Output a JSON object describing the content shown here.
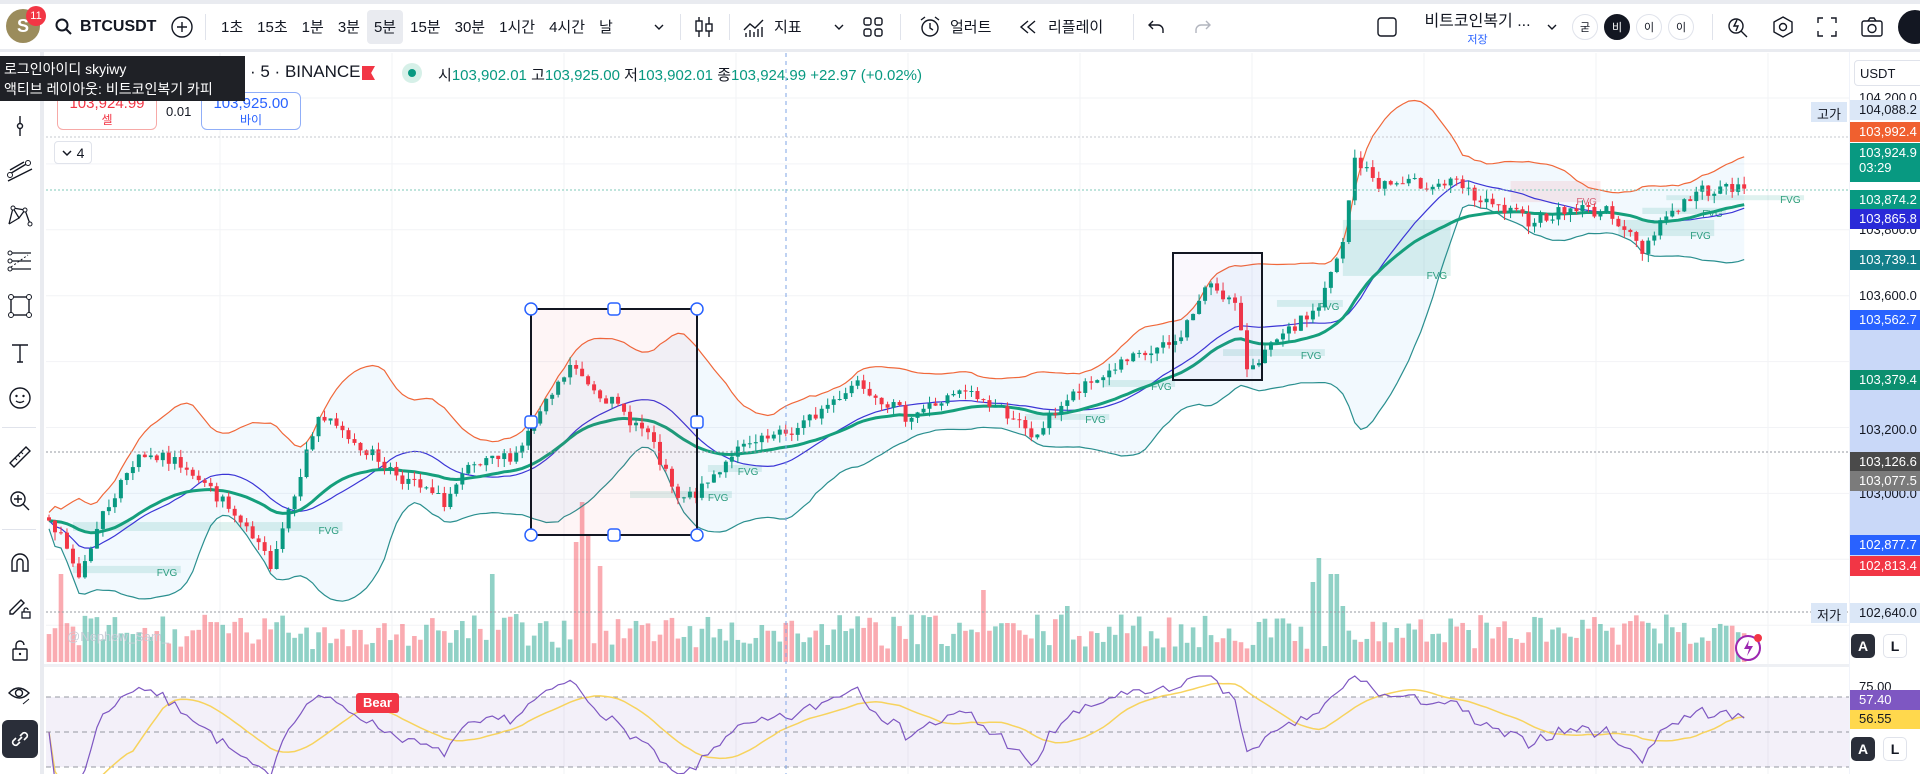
{
  "toolbar": {
    "avatar_letter": "S",
    "notification_count": "11",
    "symbol": "BTCUSDT",
    "timeframes": [
      "1초",
      "15초",
      "1분",
      "3분",
      "5분",
      "15분",
      "30분",
      "1시간",
      "4시간",
      "날"
    ],
    "active_timeframe_index": 4,
    "indicators_label": "지표",
    "alert_label": "얼러트",
    "replay_label": "리플레이",
    "layout_name": "비트코인복기 ...",
    "layout_save": "저장",
    "mode_buttons": [
      "굳",
      "비",
      "이",
      "이"
    ]
  },
  "tooltip": {
    "line1": "로그인아이디 skyiwy",
    "line2": "액티브 레이아웃: 비트코인복기 카피"
  },
  "legend": {
    "symbol_suffix": "· 5 · BINANCE",
    "o_label": "시",
    "o": "103,902.01",
    "h_label": "고",
    "h": "103,925.00",
    "l_label": "저",
    "l": "103,902.01",
    "c_label": "종",
    "c": "103,924.99",
    "change": "+22.97 (+0.02%)"
  },
  "trade": {
    "sell_price": "103,924.99",
    "sell_label": "셀",
    "spread": "0.01",
    "buy_price": "103,925.00",
    "buy_label": "바이"
  },
  "indicator_toggle": {
    "count": "4"
  },
  "watermark": "@Nephew_Sam_",
  "price_axis": {
    "currency": "USDT",
    "ticks": [
      "104,200.0",
      "103,800.0",
      "103,600.0",
      "103,200.0",
      "103,000.0"
    ],
    "high_tag": "고가",
    "low_tag": "저가",
    "labels": [
      {
        "text": "104,088.2",
        "color": "#dbe7f7",
        "fg": "#131722"
      },
      {
        "text": "103,992.4",
        "color": "#f0602f",
        "fg": "#ffffff"
      },
      {
        "text": "103,924.9",
        "sub": "03:29",
        "color": "#089981",
        "fg": "#ffffff"
      },
      {
        "text": "103,874.2",
        "color": "#089981",
        "fg": "#ffffff"
      },
      {
        "text": "103,865.8",
        "color": "#2a2ad8",
        "fg": "#ffffff"
      },
      {
        "text": "103,739.1",
        "color": "#137f8a",
        "fg": "#ffffff"
      },
      {
        "text": "103,562.7",
        "color": "#2962ff",
        "fg": "#ffffff"
      },
      {
        "text": "103,379.4",
        "color": "#0b8f6f",
        "fg": "#ffffff"
      },
      {
        "text": "103,126.6",
        "color": "#4a4a4a",
        "fg": "#ffffff"
      },
      {
        "text": "103,077.5",
        "color": "#7b7b7b",
        "fg": "#ffffff"
      },
      {
        "text": "102,877.7",
        "color": "#2962ff",
        "fg": "#ffffff"
      },
      {
        "text": "102,813.4",
        "color": "#f23645",
        "fg": "#ffffff"
      },
      {
        "text": "102,640.0",
        "color": "#dbe7f7",
        "fg": "#131722"
      }
    ]
  },
  "rsi": {
    "level_label": "75.00",
    "value": "57.40",
    "ma_value": "56.55",
    "bear_label": "Bear"
  },
  "scale_buttons": {
    "auto": "A",
    "log": "L"
  },
  "colors": {
    "up": "#089981",
    "down": "#f23645",
    "bb_upper": "#f0683a",
    "bb_lower": "#2a8f8f",
    "bb_basis": "#3b35d6",
    "ema": "#159f7c",
    "rsi": "#7e57c2",
    "rsi_ma": "#f7d35e",
    "fvg": "#cdeee2"
  },
  "chart_data": {
    "type": "candlestick",
    "bar_count": 284,
    "price_range": [
      102600,
      104250
    ],
    "close_path": [
      [
        0,
        102937
      ],
      [
        5,
        102749
      ],
      [
        9,
        102937
      ],
      [
        15,
        103123
      ],
      [
        23,
        103086
      ],
      [
        29,
        102974
      ],
      [
        37,
        102789
      ],
      [
        41,
        103010
      ],
      [
        45,
        103235
      ],
      [
        51,
        103159
      ],
      [
        59,
        103047
      ],
      [
        66,
        102974
      ],
      [
        70,
        103068
      ],
      [
        78,
        103123
      ],
      [
        87,
        103384
      ],
      [
        92,
        103308
      ],
      [
        100,
        103177
      ],
      [
        105,
        102974
      ],
      [
        109,
        103010
      ],
      [
        114,
        103123
      ],
      [
        125,
        103195
      ],
      [
        135,
        103344
      ],
      [
        143,
        103235
      ],
      [
        153,
        103308
      ],
      [
        161,
        103235
      ],
      [
        164,
        103159
      ],
      [
        169,
        103271
      ],
      [
        178,
        103384
      ],
      [
        188,
        103456
      ],
      [
        194,
        103642
      ],
      [
        198,
        103569
      ],
      [
        200,
        103384
      ],
      [
        205,
        103456
      ],
      [
        212,
        103569
      ],
      [
        216,
        103754
      ],
      [
        218,
        104015
      ],
      [
        222,
        103939
      ],
      [
        228,
        103939
      ],
      [
        235,
        103939
      ],
      [
        239,
        103884
      ],
      [
        247,
        103830
      ],
      [
        255,
        103866
      ],
      [
        261,
        103850
      ],
      [
        266,
        103736
      ],
      [
        269,
        103830
      ],
      [
        276,
        103921
      ],
      [
        283,
        103925
      ]
    ],
    "volume_spikes": [
      [
        2,
        0.55
      ],
      [
        74,
        0.55
      ],
      [
        88,
        0.75
      ],
      [
        89,
        1.0
      ],
      [
        90,
        0.8
      ],
      [
        92,
        0.6
      ],
      [
        156,
        0.45
      ],
      [
        170,
        0.35
      ],
      [
        211,
        0.5
      ],
      [
        212,
        0.65
      ],
      [
        214,
        0.55
      ],
      [
        215,
        0.55
      ],
      [
        216,
        0.35
      ]
    ],
    "fvg_zones": [
      {
        "label": "FVG",
        "from": 4,
        "to": 49,
        "top": 102913,
        "bottom": 102886,
        "kind": "bull"
      },
      {
        "label": "FVG",
        "from": 4,
        "to": 22,
        "top": 102780,
        "bottom": 102758,
        "kind": "bull"
      },
      {
        "label": "FVG",
        "from": 97,
        "to": 114,
        "top": 103007,
        "bottom": 102986,
        "kind": "bull"
      },
      {
        "label": "FVG",
        "from": 110,
        "to": 119,
        "top": 103086,
        "bottom": 103065,
        "kind": "bull"
      },
      {
        "label": "FVG",
        "from": 163,
        "to": 177,
        "top": 103241,
        "bottom": 103223,
        "kind": "bull"
      },
      {
        "label": "FVG",
        "from": 176,
        "to": 188,
        "top": 103344,
        "bottom": 103323,
        "kind": "bull"
      },
      {
        "label": "FVG",
        "from": 196,
        "to": 213,
        "top": 103438,
        "bottom": 103417,
        "kind": "bull"
      },
      {
        "label": "FVG",
        "from": 205,
        "to": 216,
        "top": 103587,
        "bottom": 103566,
        "kind": "bull"
      },
      {
        "label": "FVG",
        "from": 216,
        "to": 234,
        "top": 103830,
        "bottom": 103660,
        "kind": "bull"
      },
      {
        "label": "FVG",
        "from": 244,
        "to": 259,
        "top": 103948,
        "bottom": 103884,
        "kind": "bear"
      },
      {
        "label": "FVG",
        "from": 262,
        "to": 278,
        "top": 103830,
        "bottom": 103781,
        "kind": "bull"
      },
      {
        "label": "FVG",
        "from": 266,
        "to": 280,
        "top": 103867,
        "bottom": 103848,
        "kind": "bull"
      },
      {
        "label": "FVG",
        "from": 270,
        "to": 293,
        "top": 103905,
        "bottom": 103890,
        "kind": "bull"
      }
    ],
    "rsi_levels": [
      70,
      50,
      30
    ]
  }
}
